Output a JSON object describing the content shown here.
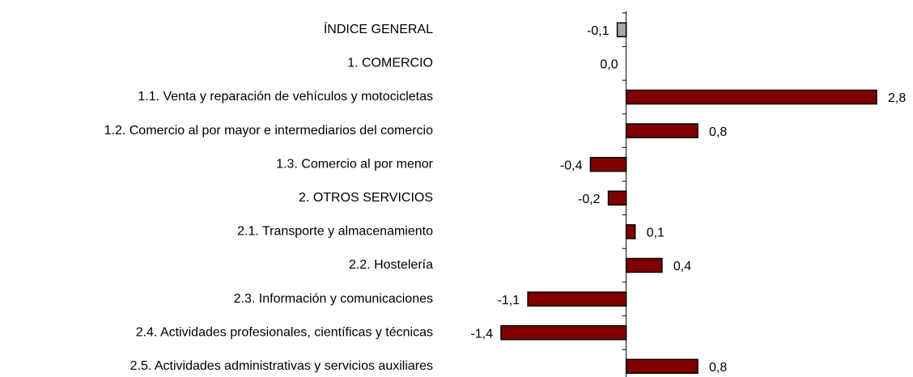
{
  "chart_data": {
    "type": "bar",
    "orientation": "horizontal",
    "categories": [
      "ÍNDICE GENERAL",
      "1. COMERCIO",
      "1.1. Venta y reparación de vehículos y motocicletas",
      "1.2. Comercio al por mayor e intermediarios del comercio",
      "1.3. Comercio al por menor",
      "2. OTROS SERVICIOS",
      "2.1. Transporte y almacenamiento",
      "2.2. Hostelería",
      "2.3. Información y comunicaciones",
      "2.4. Actividades profesionales, científicas y técnicas",
      "2.5. Actividades administrativas y servicios auxiliares"
    ],
    "values": [
      -0.1,
      0.0,
      2.8,
      0.8,
      -0.4,
      -0.2,
      0.1,
      0.4,
      -1.1,
      -1.4,
      0.8
    ],
    "value_labels": [
      "-0,1",
      "0,0",
      "2,8",
      "0,8",
      "-0,4",
      "-0,2",
      "0,1",
      "0,4",
      "-1,1",
      "-1,4",
      "0,8"
    ],
    "colors": [
      "#a6a6a6",
      "#800000",
      "#800000",
      "#800000",
      "#800000",
      "#800000",
      "#800000",
      "#800000",
      "#800000",
      "#800000",
      "#800000"
    ],
    "grid": false
  }
}
